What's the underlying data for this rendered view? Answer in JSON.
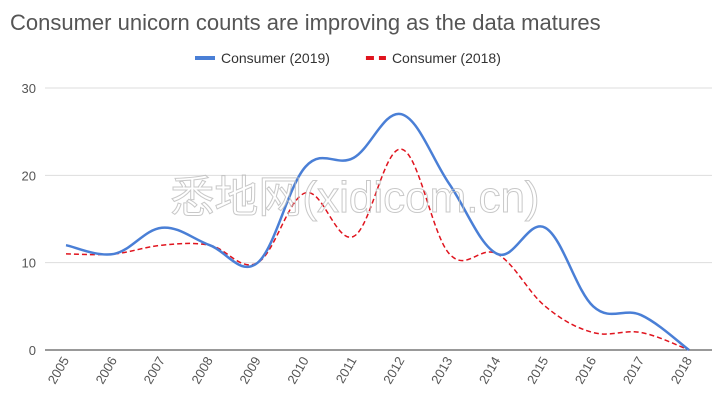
{
  "chart_data": {
    "type": "line",
    "title": "Consumer unicorn counts are improving as the data matures",
    "categories": [
      "2005",
      "2006",
      "2007",
      "2008",
      "2009",
      "2010",
      "2011",
      "2012",
      "2013",
      "2014",
      "2015",
      "2016",
      "2017",
      "2018"
    ],
    "series": [
      {
        "name": "Consumer (2019)",
        "color": "#4a7fd6",
        "dash": false,
        "values": [
          12,
          11,
          14,
          12,
          10,
          21,
          22,
          27,
          19,
          11,
          14,
          5,
          4,
          0
        ]
      },
      {
        "name": "Consumer (2018)",
        "color": "#e0141e",
        "dash": true,
        "values": [
          11,
          11,
          12,
          12,
          10,
          18,
          13,
          23,
          11,
          11,
          5,
          2,
          2,
          0
        ]
      }
    ],
    "ylim": [
      0,
      30
    ],
    "yticks": [
      0,
      10,
      20,
      30
    ],
    "grid": true,
    "watermark": "悉地网(xidicom.cn)"
  }
}
